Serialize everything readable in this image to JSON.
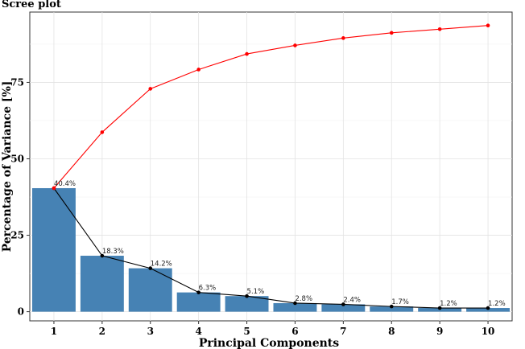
{
  "chart_data": {
    "type": "bar",
    "title": "Scree plot",
    "xlabel": "Principal  Components",
    "ylabel": "Percentage of Variance [%]",
    "categories": [
      "1",
      "2",
      "3",
      "4",
      "5",
      "6",
      "7",
      "8",
      "9",
      "10"
    ],
    "ylim": [
      -3,
      98
    ],
    "yticks": [
      0,
      25,
      50,
      75
    ],
    "grid": true,
    "series": [
      {
        "type": "bar",
        "values": [
          40.4,
          18.3,
          14.2,
          6.3,
          5.1,
          2.8,
          2.4,
          1.7,
          1.2,
          1.2
        ],
        "labels": [
          "40.4%",
          "18.3%",
          "14.2%",
          "6.3%",
          "5.1%",
          "2.8%",
          "2.4%",
          "1.7%",
          "1.2%",
          "1.2%"
        ],
        "color": "#4682B4"
      },
      {
        "type": "line",
        "values": [
          40.4,
          18.3,
          14.2,
          6.3,
          5.1,
          2.8,
          2.4,
          1.7,
          1.2,
          1.2
        ],
        "color": "#000000"
      },
      {
        "type": "line",
        "values": [
          40.4,
          58.7,
          72.9,
          79.2,
          84.3,
          87.1,
          89.5,
          91.2,
          92.4,
          93.6
        ],
        "color": "#FF0000"
      }
    ]
  }
}
